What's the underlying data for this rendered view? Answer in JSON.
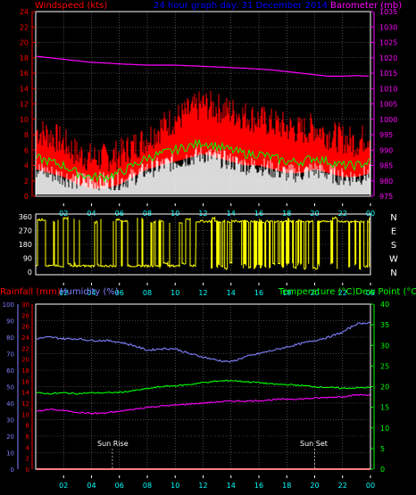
{
  "colors": {
    "background": "#000000",
    "frame": "#ffffff",
    "grid": "#808080",
    "windspeed_axis": "#ff0000",
    "barometer_axis": "#ff00ff",
    "rainfall_axis": "#ff0000",
    "humidity_axis": "#8080ff",
    "temp_axis": "#00ff00",
    "title": "#0000ff",
    "x_axis": "#00ffff",
    "wind_dir_axis": "#ffffff"
  },
  "chart_data": [
    {
      "type": "line",
      "panel": "wind",
      "title": "24 hour graph day: 31 December 2014",
      "ylabel_left": "Windspeed (kts)",
      "ylabel_right": "Barometer (mb)",
      "ylim_left": [
        0,
        24
      ],
      "yticks_left": [
        "0",
        "2",
        "4",
        "6",
        "8",
        "10",
        "12",
        "14",
        "16",
        "18",
        "20",
        "22",
        "24"
      ],
      "ylim_right": [
        975,
        1035
      ],
      "yticks_right": [
        "975",
        "980",
        "985",
        "990",
        "995",
        "1000",
        "1005",
        "1010",
        "1015",
        "1020",
        "1025",
        "1030",
        "1035"
      ],
      "xticks": [
        "02",
        "04",
        "06",
        "08",
        "10",
        "12",
        "14",
        "16",
        "18",
        "20",
        "22",
        "00"
      ],
      "x_hours": [
        0,
        1,
        2,
        3,
        4,
        5,
        6,
        7,
        8,
        9,
        10,
        11,
        12,
        13,
        14,
        15,
        16,
        17,
        18,
        19,
        20,
        21,
        22,
        23,
        24
      ],
      "series": [
        {
          "name": "Barometer",
          "axis": "right",
          "color": "#ff00ff",
          "values": [
            1020.5,
            1020,
            1019.5,
            1019,
            1018.5,
            1018.3,
            1018,
            1017.8,
            1017.6,
            1017.6,
            1017.6,
            1017.4,
            1017.2,
            1017,
            1016.8,
            1016.6,
            1016.3,
            1016,
            1015.5,
            1015,
            1014.5,
            1014,
            1014,
            1014.2,
            1014
          ]
        },
        {
          "name": "Gust",
          "axis": "left",
          "color": "#ff0000",
          "values": [
            8.5,
            8,
            7,
            5.5,
            5,
            5,
            5.5,
            6.5,
            7.5,
            9,
            10,
            11,
            12,
            11.5,
            11,
            10.5,
            10,
            9.5,
            9,
            8.5,
            9,
            8,
            7.5,
            7,
            8
          ]
        },
        {
          "name": "Average",
          "axis": "left",
          "color": "#00ff00",
          "values": [
            5,
            4.5,
            4,
            3,
            2.5,
            2.5,
            3,
            4,
            5,
            5.5,
            6,
            6.5,
            7,
            6.5,
            6,
            5.5,
            5.5,
            5,
            4.5,
            4.5,
            5,
            4.5,
            4,
            4,
            4.5
          ]
        },
        {
          "name": "Speed",
          "axis": "left",
          "color": "#ffffff",
          "values": [
            3,
            2.5,
            2,
            1.5,
            1.5,
            1.5,
            1.5,
            2,
            3,
            3.5,
            4,
            4.5,
            5,
            4.5,
            4,
            3.5,
            3.5,
            3,
            2.5,
            2.5,
            3,
            2.5,
            2,
            2,
            2.5
          ]
        }
      ]
    },
    {
      "type": "line",
      "panel": "direction",
      "ylim": [
        0,
        360
      ],
      "yticks": [
        "0",
        "90",
        "180",
        "270",
        "360"
      ],
      "compass": [
        "N",
        "W",
        "S",
        "E",
        "N"
      ],
      "xticks": [
        "02",
        "04",
        "06",
        "08",
        "10",
        "12",
        "14",
        "16",
        "18",
        "20",
        "22",
        "00"
      ],
      "series": [
        {
          "name": "Wind direction",
          "color": "#ffff00",
          "segments": [
            {
              "from_hour": 0,
              "to_hour": 11.5,
              "base": 40,
              "flips": 28
            },
            {
              "from_hour": 11.5,
              "to_hour": 24,
              "base": 330,
              "flips": 70
            }
          ]
        }
      ]
    },
    {
      "type": "line",
      "panel": "temperature",
      "ylabel_left_1": "Rainfall (mm)",
      "ylabel_left_2": "Humidity (%)",
      "ylabel_right": "Temperature (°C)Dew Point (°C)",
      "humidity_ticks": [
        "0",
        "10",
        "20",
        "30",
        "40",
        "50",
        "60",
        "70",
        "80",
        "90",
        "100"
      ],
      "rain_ticks": [
        "0",
        "2",
        "4",
        "6",
        "8",
        "10",
        "12",
        "14",
        "16",
        "18",
        "20",
        "22",
        "24",
        "26",
        "28",
        "30"
      ],
      "temp_ticks": [
        "0",
        "5",
        "10",
        "15",
        "20",
        "25",
        "30",
        "35",
        "40"
      ],
      "ylim_humidity": [
        0,
        100
      ],
      "ylim_temp": [
        0,
        40
      ],
      "xticks": [
        "02",
        "04",
        "06",
        "08",
        "10",
        "12",
        "14",
        "16",
        "18",
        "20",
        "22",
        "00"
      ],
      "x_hours": [
        0,
        1,
        2,
        3,
        4,
        5,
        6,
        7,
        8,
        9,
        10,
        11,
        12,
        13,
        14,
        15,
        16,
        17,
        18,
        19,
        20,
        21,
        22,
        23,
        24
      ],
      "sunrise_hour": 5.5,
      "sunset_hour": 20,
      "sunrise_label": "Sun Rise",
      "sunset_label": "Sun Set",
      "series": [
        {
          "name": "Humidity",
          "axis": "humidity",
          "color": "#8080ff",
          "values": [
            79,
            80,
            79,
            79,
            78,
            78,
            77,
            75,
            72,
            73,
            73,
            70,
            68,
            66,
            65,
            68,
            70,
            72,
            74,
            76,
            78,
            80,
            83,
            88,
            89
          ]
        },
        {
          "name": "Temperature",
          "axis": "temp",
          "color": "#00ff00",
          "values": [
            18.5,
            18.3,
            18.5,
            18.3,
            18.5,
            18.5,
            18.6,
            19,
            19.5,
            20,
            20.2,
            20.5,
            21,
            21.3,
            21.5,
            21.2,
            21,
            20.6,
            20.5,
            20.3,
            20,
            19.8,
            19.6,
            19.7,
            19.8
          ]
        },
        {
          "name": "Dew Point",
          "axis": "temp",
          "color": "#ff00ff",
          "values": [
            14,
            14.5,
            14.2,
            13.8,
            13.5,
            13.6,
            14,
            14.5,
            15,
            15.3,
            15.5,
            15.8,
            16,
            16.3,
            16.5,
            16.5,
            16.6,
            16.8,
            17,
            17,
            17.2,
            17.4,
            17.6,
            18,
            18
          ]
        },
        {
          "name": "Rainfall",
          "axis": "rain",
          "color": "#ff0000",
          "values": [
            0,
            0,
            0,
            0,
            0,
            0,
            0,
            0,
            0,
            0,
            0,
            0,
            0,
            0,
            0,
            0,
            0,
            0,
            0,
            0,
            0,
            0,
            0,
            0,
            0
          ]
        }
      ]
    }
  ]
}
